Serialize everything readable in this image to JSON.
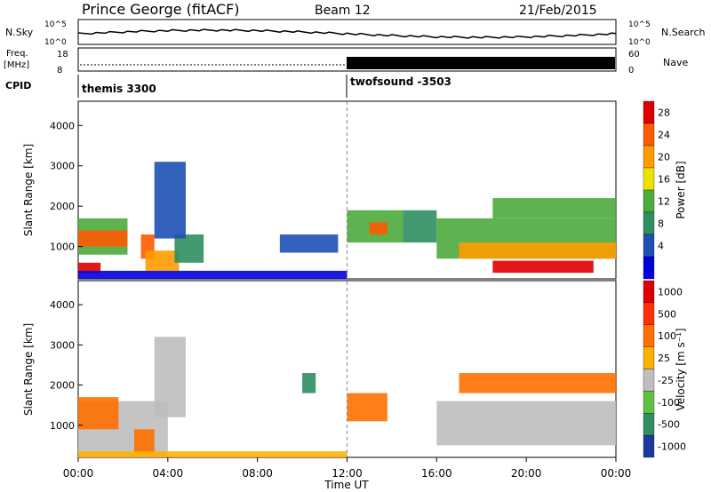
{
  "header": {
    "station": "Prince George (fitACF)",
    "beam": "Beam 12",
    "date": "21/Feb/2015"
  },
  "strips": {
    "nsky_label": "N.Sky",
    "nsky_ticks": [
      "10^5",
      "10^0"
    ],
    "nsearch_label": "N.Search",
    "freq_label_1": "Freq.",
    "freq_label_2": "[MHz]",
    "freq_ticks": [
      "18",
      "8"
    ],
    "nave_label": "Nave",
    "nave_ticks": [
      "60",
      "0"
    ],
    "cpid_label": "CPID",
    "cpid_modes": [
      {
        "name": "themis 3300",
        "start_hour": 0
      },
      {
        "name": "twofsound -3503",
        "start_hour": 12
      }
    ]
  },
  "power_panel": {
    "ylabel": "Slant Range [km]",
    "yticks": [
      "4000",
      "3000",
      "2000",
      "1000"
    ],
    "colorbar_label": "Power [dB]",
    "colorbar_ticks": [
      "28",
      "24",
      "20",
      "16",
      "12",
      "8",
      "4"
    ],
    "colors": [
      "#0000dd",
      "#1e50b4",
      "#2f8f60",
      "#4daa3c",
      "#f0e000",
      "#ff9b00",
      "#ff5a00",
      "#e00000"
    ]
  },
  "velocity_panel": {
    "ylabel": "Slant Range [km]",
    "yticks": [
      "4000",
      "3000",
      "2000",
      "1000"
    ],
    "colorbar_label": "Velocity [m s⁻¹]",
    "colorbar_ticks": [
      "1000",
      "500",
      "100",
      "25",
      "-25",
      "-100",
      "-500",
      "-1000"
    ],
    "colors": [
      "#1a3aa0",
      "#2f8f60",
      "#60c040",
      "#bebebe",
      "#ffb000",
      "#ff7000",
      "#ff3000",
      "#e00000"
    ]
  },
  "time_axis": {
    "label": "Time UT",
    "ticks": [
      "00:00",
      "04:00",
      "08:00",
      "12:00",
      "16:00",
      "20:00",
      "00:00"
    ]
  },
  "chart_data": {
    "type": "heatmap",
    "x_unit": "hour UT",
    "xlim": [
      0,
      24
    ],
    "y_unit": "km",
    "ylim": [
      200,
      4600
    ],
    "power_bands": [
      {
        "t0": 0,
        "t1": 2.2,
        "r0": 800,
        "r1": 1700,
        "level": 3
      },
      {
        "t0": 0,
        "t1": 2.2,
        "r0": 1000,
        "r1": 1400,
        "level": 6
      },
      {
        "t0": 0,
        "t1": 1,
        "r0": 350,
        "r1": 600,
        "level": 7
      },
      {
        "t0": 2.8,
        "t1": 3.4,
        "r0": 700,
        "r1": 1300,
        "level": 6
      },
      {
        "t0": 3,
        "t1": 4.5,
        "r0": 400,
        "r1": 900,
        "level": 5
      },
      {
        "t0": 4.3,
        "t1": 5.6,
        "r0": 600,
        "r1": 1300,
        "level": 2
      },
      {
        "t0": 3.4,
        "t1": 4.8,
        "r0": 1200,
        "r1": 3100,
        "level": 1
      },
      {
        "t0": 9,
        "t1": 11.6,
        "r0": 850,
        "r1": 1300,
        "level": 1
      },
      {
        "t0": 12,
        "t1": 14.5,
        "r0": 1100,
        "r1": 1900,
        "level": 3
      },
      {
        "t0": 13,
        "t1": 13.8,
        "r0": 1300,
        "r1": 1600,
        "level": 6
      },
      {
        "t0": 14.5,
        "t1": 16,
        "r0": 1100,
        "r1": 1900,
        "level": 2
      },
      {
        "t0": 16,
        "t1": 24,
        "r0": 700,
        "r1": 1700,
        "level": 3
      },
      {
        "t0": 17,
        "t1": 24,
        "r0": 700,
        "r1": 1100,
        "level": 5
      },
      {
        "t0": 18.5,
        "t1": 23,
        "r0": 350,
        "r1": 650,
        "level": 7
      },
      {
        "t0": 18.5,
        "t1": 24,
        "r0": 1700,
        "r1": 2200,
        "level": 3
      },
      {
        "t0": 0,
        "t1": 12,
        "r0": 200,
        "r1": 400,
        "level": 0
      }
    ],
    "velocity_bands": [
      {
        "t0": 0,
        "t1": 4,
        "r0": 200,
        "r1": 1600,
        "level": 3
      },
      {
        "t0": 0,
        "t1": 1.8,
        "r0": 900,
        "r1": 1700,
        "level": 5
      },
      {
        "t0": 2.5,
        "t1": 3.4,
        "r0": 300,
        "r1": 900,
        "level": 5
      },
      {
        "t0": 3.4,
        "t1": 4.8,
        "r0": 1200,
        "r1": 3200,
        "level": 3
      },
      {
        "t0": 10,
        "t1": 10.6,
        "r0": 1800,
        "r1": 2300,
        "level": 1
      },
      {
        "t0": 12,
        "t1": 13.8,
        "r0": 1100,
        "r1": 1800,
        "level": 5
      },
      {
        "t0": 16,
        "t1": 24,
        "r0": 500,
        "r1": 1600,
        "level": 3
      },
      {
        "t0": 17,
        "t1": 24,
        "r0": 1800,
        "r1": 2300,
        "level": 5
      },
      {
        "t0": 0,
        "t1": 12,
        "r0": 200,
        "r1": 350,
        "level": 4
      }
    ]
  }
}
